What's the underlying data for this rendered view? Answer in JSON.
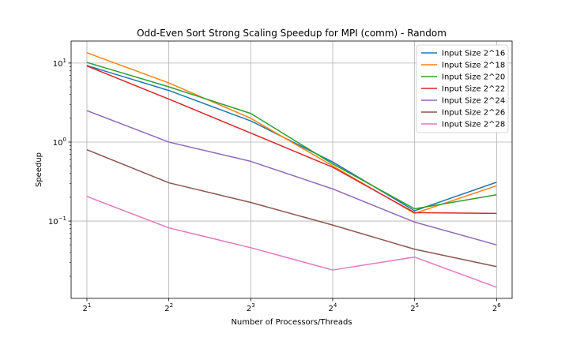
{
  "chart_data": {
    "type": "line",
    "title": "Odd-Even Sort Strong Scaling Speedup for MPI (comm) - Random",
    "xlabel": "Number of Processors/Threads",
    "ylabel": "Speedup",
    "x": [
      2,
      4,
      8,
      16,
      32,
      64
    ],
    "x_tick_labels": [
      {
        "base": "2",
        "exp": "1"
      },
      {
        "base": "2",
        "exp": "2"
      },
      {
        "base": "2",
        "exp": "3"
      },
      {
        "base": "2",
        "exp": "4"
      },
      {
        "base": "2",
        "exp": "5"
      },
      {
        "base": "2",
        "exp": "6"
      }
    ],
    "x_scale": "log2",
    "y_scale": "log10",
    "ylim": [
      0.0105,
      19
    ],
    "y_tick_labels": [
      {
        "value": 0.1,
        "base": "10",
        "exp": "−1"
      },
      {
        "value": 1,
        "base": "10",
        "exp": "0"
      },
      {
        "value": 10,
        "base": "10",
        "exp": "1"
      }
    ],
    "grid": true,
    "legend_position": "top-right",
    "series": [
      {
        "name": "Input Size 2^16",
        "color": "#1f77b4",
        "values": [
          9.3,
          4.5,
          1.85,
          0.56,
          0.135,
          0.31
        ]
      },
      {
        "name": "Input Size 2^18",
        "color": "#ff7f0e",
        "values": [
          13.5,
          5.6,
          2.0,
          0.5,
          0.125,
          0.28
        ]
      },
      {
        "name": "Input Size 2^20",
        "color": "#2ca02c",
        "values": [
          10.2,
          5.0,
          2.3,
          0.53,
          0.143,
          0.215
        ]
      },
      {
        "name": "Input Size 2^22",
        "color": "#d62728",
        "values": [
          9.2,
          3.5,
          1.3,
          0.48,
          0.128,
          0.125
        ]
      },
      {
        "name": "Input Size 2^24",
        "color": "#9467bd",
        "values": [
          2.5,
          1.0,
          0.57,
          0.255,
          0.097,
          0.05
        ]
      },
      {
        "name": "Input Size 2^26",
        "color": "#8c564b",
        "values": [
          0.8,
          0.305,
          0.172,
          0.089,
          0.044,
          0.0265
        ]
      },
      {
        "name": "Input Size 2^28",
        "color": "#e377c2",
        "values": [
          0.205,
          0.082,
          0.046,
          0.024,
          0.035,
          0.0145
        ]
      }
    ]
  }
}
